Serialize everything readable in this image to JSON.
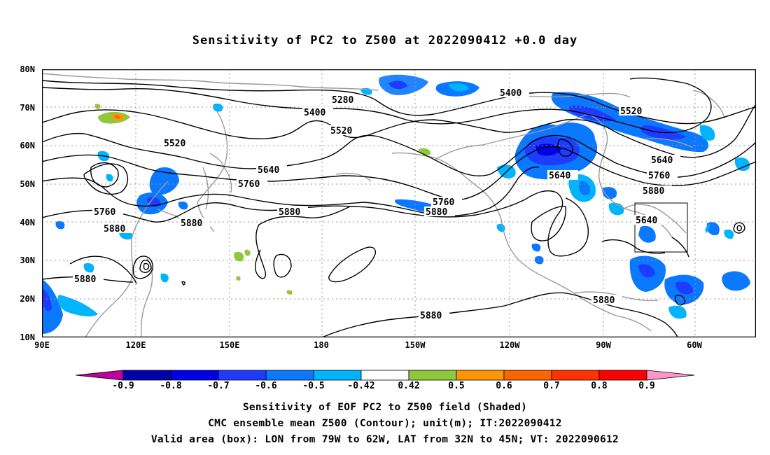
{
  "title": "Sensitivity of PC2 to Z500 at 2022090412 +0.0 day",
  "lat_labels": [
    "80N",
    "70N",
    "60N",
    "50N",
    "40N",
    "30N",
    "20N",
    "10N"
  ],
  "lon_labels": [
    "90E",
    "120E",
    "150E",
    "180",
    "150W",
    "120W",
    "90W",
    "60W"
  ],
  "contour_labels": [
    "5280",
    "5400",
    "5520",
    "5640",
    "5760",
    "5880",
    "5520",
    "5400",
    "5520",
    "5640",
    "5760",
    "5880",
    "5640",
    "5760",
    "5880",
    "5640",
    "5760",
    "5880",
    "5880",
    "5880",
    "5880",
    "5880",
    "5880"
  ],
  "colorbar": {
    "labels": [
      "-0.9",
      "-0.8",
      "-0.7",
      "-0.6",
      "-0.5",
      "-0.42",
      "0.42",
      "0.5",
      "0.6",
      "0.7",
      "0.8",
      "0.9"
    ],
    "colors": [
      "#c000a0",
      "#0000a8",
      "#0000e6",
      "#1e3cff",
      "#0a78ff",
      "#00b4ff",
      "#ffffff",
      "#90c83c",
      "#ff9600",
      "#ff6400",
      "#ff3200",
      "#ff0000",
      "#ff96c8"
    ]
  },
  "caption": {
    "line1": "Sensitivity of EOF PC2 to Z500 field (Shaded)",
    "line2": "CMC ensemble mean Z500 (Contour); unit(m); IT:2022090412",
    "line3": "Valid area (box): LON from 79W to 62W, LAT from 32N to 45N; VT: 2022090612"
  }
}
